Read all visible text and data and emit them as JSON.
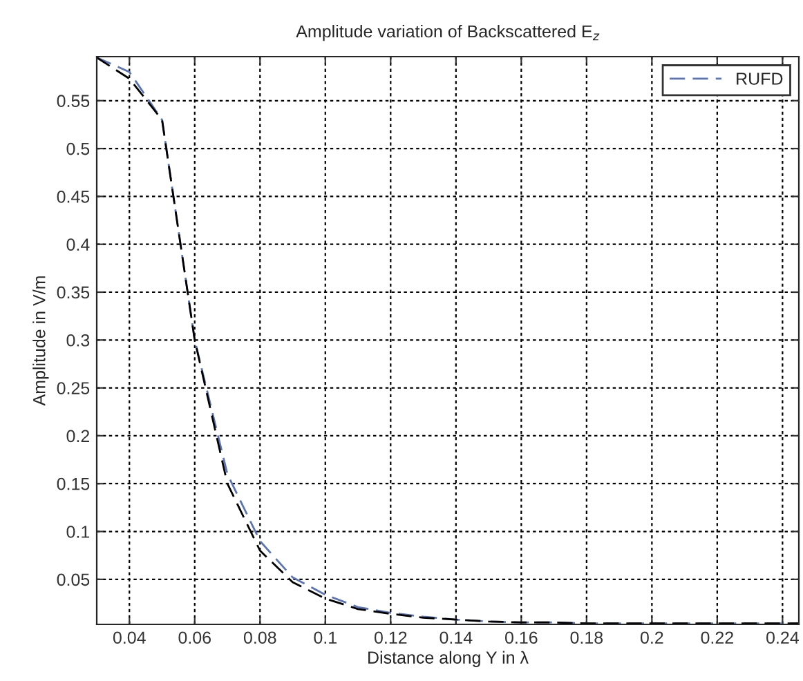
{
  "chart_data": {
    "type": "line",
    "title": "Amplitude variation of Backscattered E$_{z}$",
    "xlabel": "Distance along Y in λ",
    "ylabel": "Amplitude in V/m",
    "x": [
      0.03,
      0.04,
      0.05,
      0.06,
      0.07,
      0.08,
      0.09,
      0.1,
      0.11,
      0.12,
      0.13,
      0.14,
      0.15,
      0.16,
      0.17,
      0.18,
      0.19,
      0.2,
      0.21,
      0.22,
      0.23,
      0.24,
      0.245
    ],
    "series": [
      {
        "name": "RUFD",
        "color": "#5b74b8",
        "values": [
          0.595,
          0.58,
          0.53,
          0.3,
          0.16,
          0.09,
          0.052,
          0.034,
          0.021,
          0.015,
          0.011,
          0.008,
          0.006,
          0.005,
          0.005,
          0.004,
          0.004,
          0.004,
          0.004,
          0.004,
          0.004,
          0.004,
          0.004
        ]
      },
      {
        "color": "#000000",
        "values": [
          0.595,
          0.573,
          0.53,
          0.3,
          0.15,
          0.08,
          0.047,
          0.03,
          0.019,
          0.014,
          0.01,
          0.008,
          0.006,
          0.005,
          0.005,
          0.004,
          0.004,
          0.004,
          0.004,
          0.004,
          0.004,
          0.004,
          0.004
        ]
      }
    ],
    "xlim": [
      0.03,
      0.245
    ],
    "ylim": [
      0.003,
      0.596
    ],
    "xticks": [
      0.04,
      0.06,
      0.08,
      0.1,
      0.12,
      0.14,
      0.16,
      0.18,
      0.2,
      0.22,
      0.24
    ],
    "yticks": [
      0.05,
      0.1,
      0.15,
      0.2,
      0.25,
      0.3,
      0.35,
      0.4,
      0.45,
      0.5,
      0.55
    ],
    "grid": true,
    "legend": "top right",
    "line_style": "dashed",
    "marker": "none"
  }
}
